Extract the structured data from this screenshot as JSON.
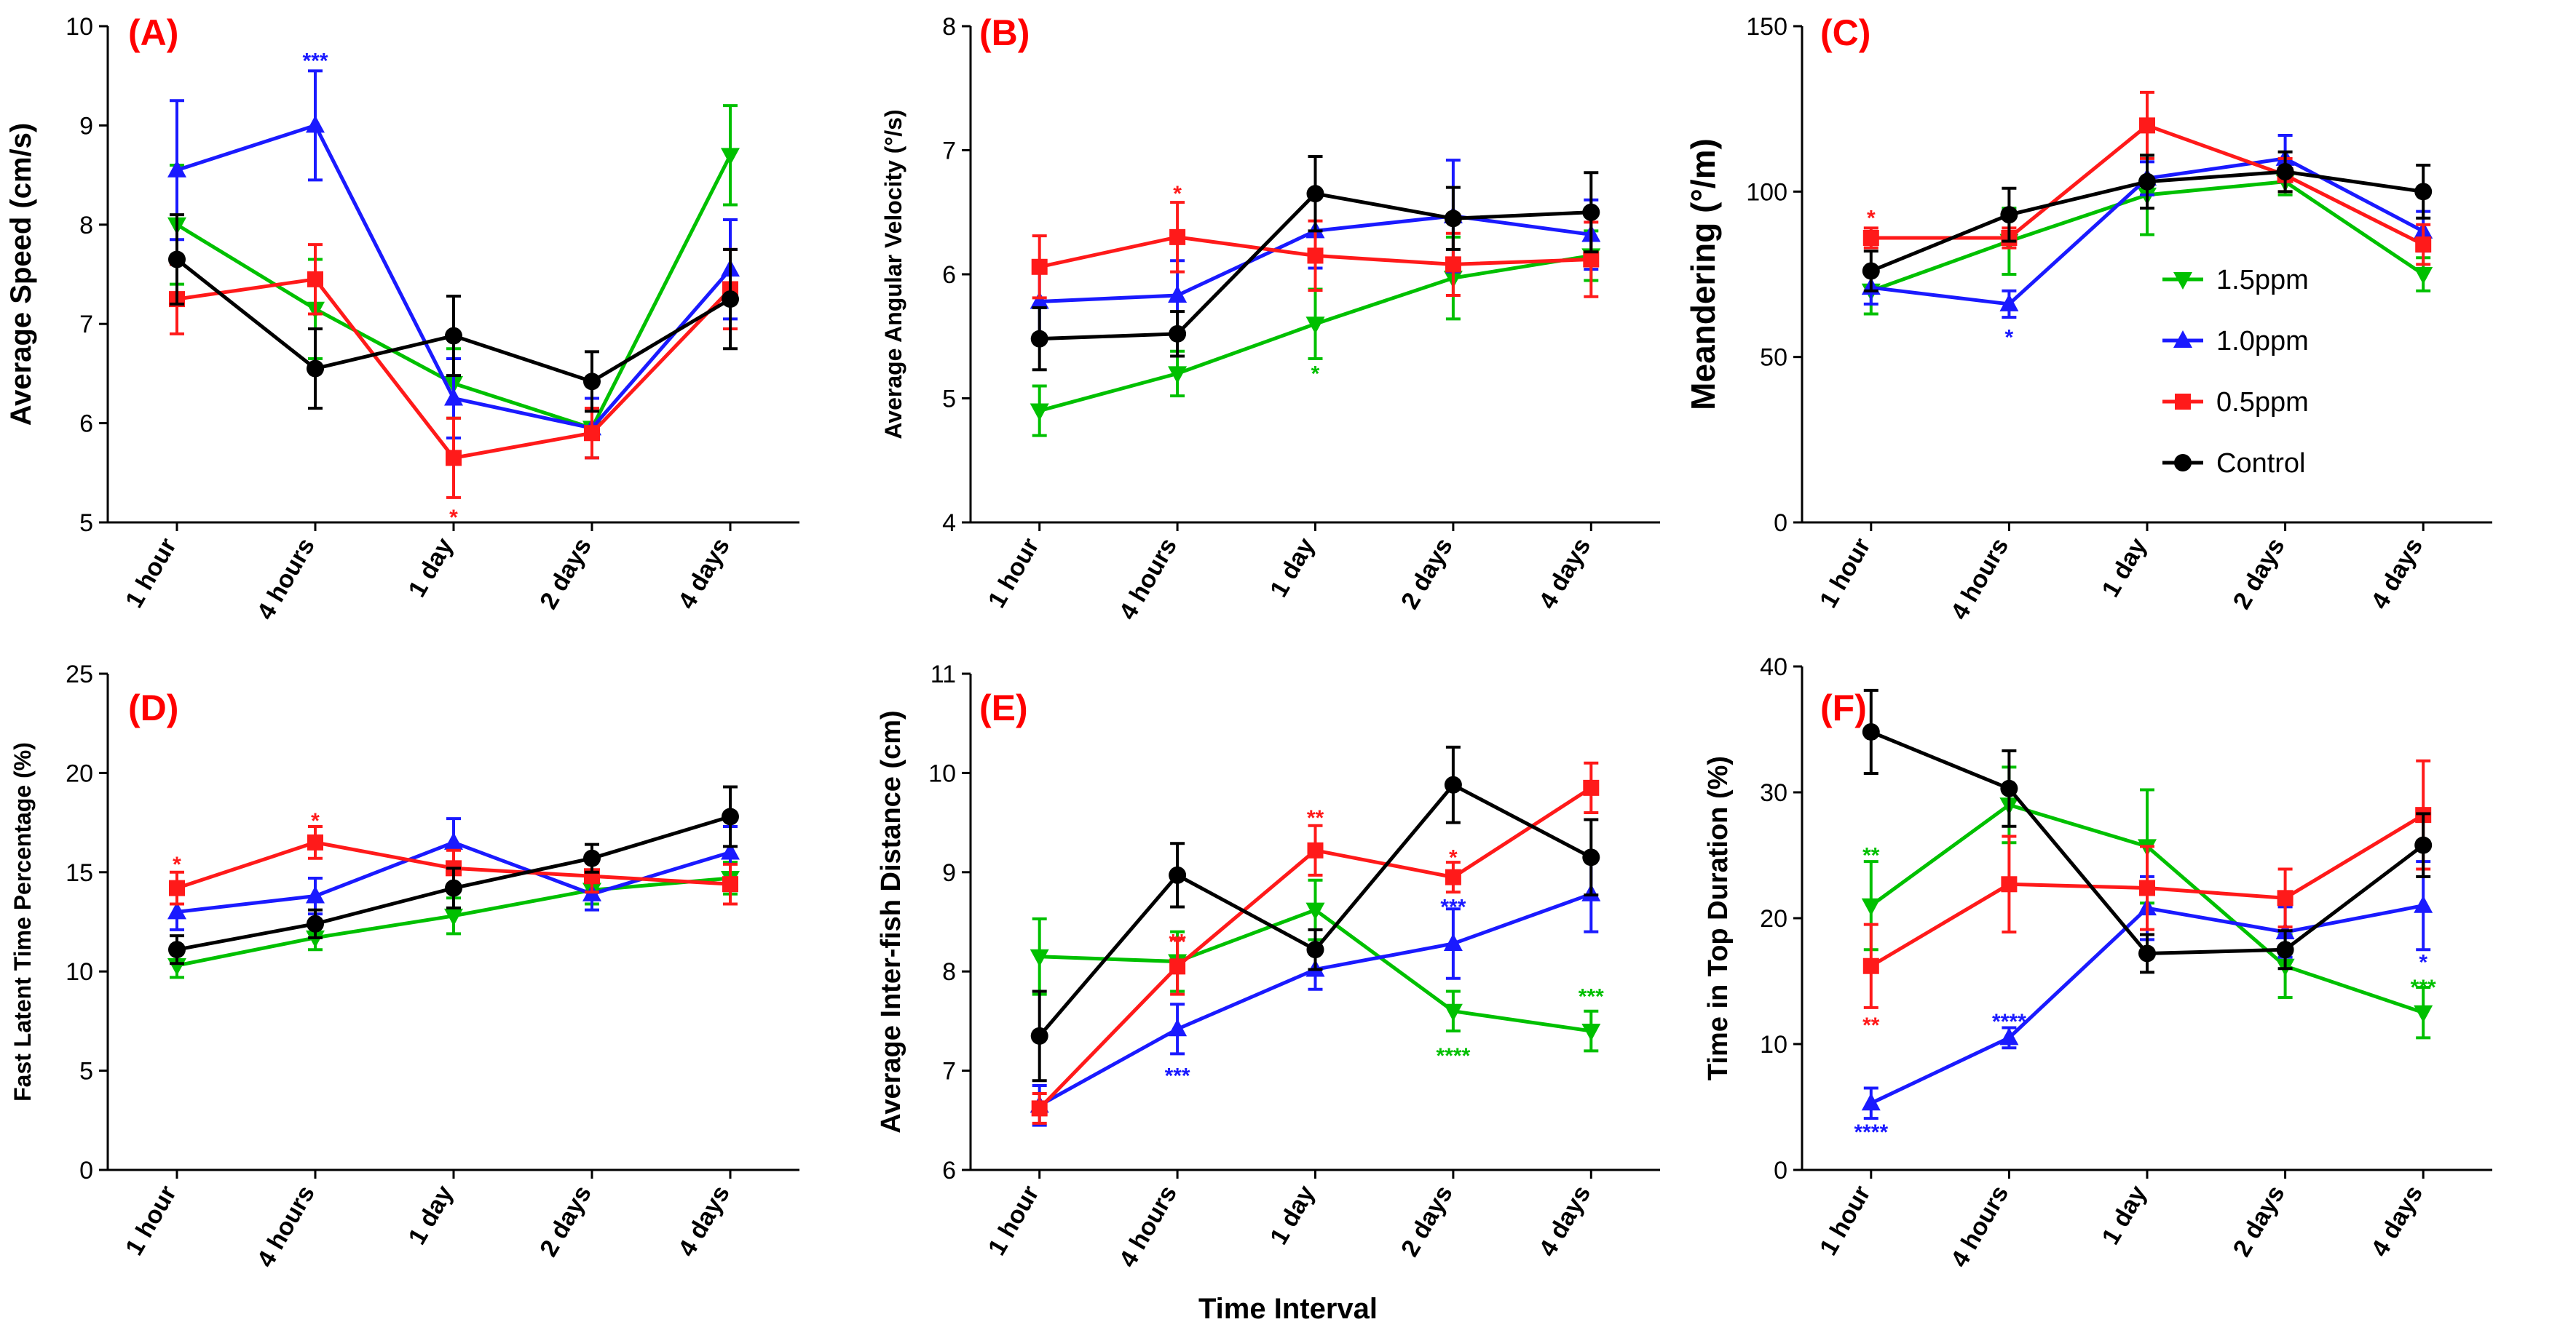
{
  "figure": {
    "xaxis_title": "Time Interval",
    "colors": {
      "1.5ppm": "#00c000",
      "1.0ppm": "#1a1aff",
      "0.5ppm": "#ff1a1a",
      "Control": "#000000"
    },
    "legend": [
      {
        "name": "1.5ppm",
        "marker": "triangle-down"
      },
      {
        "name": "1.0ppm",
        "marker": "triangle-up"
      },
      {
        "name": "0.5ppm",
        "marker": "square"
      },
      {
        "name": "Control",
        "marker": "circle"
      }
    ]
  },
  "chart_data": [
    {
      "panel": "(A)",
      "type": "line",
      "categories": [
        "1 hour",
        "4 hours",
        "1 day",
        "2 days",
        "4 days"
      ],
      "ylabel": "Average Speed (cm/s)",
      "ylim": [
        5,
        10
      ],
      "yticks": [
        5,
        6,
        7,
        8,
        9,
        10
      ],
      "series": [
        {
          "name": "1.5ppm",
          "values": [
            8.0,
            7.15,
            6.4,
            5.95,
            8.7
          ],
          "errors": [
            0.6,
            0.5,
            0.35,
            0.3,
            0.5
          ]
        },
        {
          "name": "1.0ppm",
          "values": [
            8.55,
            9.0,
            6.25,
            5.95,
            7.55
          ],
          "errors": [
            0.7,
            0.55,
            0.4,
            0.3,
            0.5
          ]
        },
        {
          "name": "0.5ppm",
          "values": [
            7.25,
            7.45,
            5.65,
            5.9,
            7.35
          ],
          "errors": [
            0.35,
            0.35,
            0.4,
            0.25,
            0.4
          ]
        },
        {
          "name": "Control",
          "values": [
            7.65,
            6.55,
            6.88,
            6.42,
            7.25
          ],
          "errors": [
            0.45,
            0.4,
            0.4,
            0.3,
            0.5
          ]
        }
      ],
      "annotations": [
        {
          "cat": 1,
          "value": 9.65,
          "text": "***",
          "series": "1.0ppm"
        },
        {
          "cat": 2,
          "value": 5.05,
          "text": "*",
          "series": "0.5ppm"
        }
      ]
    },
    {
      "panel": "(B)",
      "type": "line",
      "categories": [
        "1 hour",
        "4 hours",
        "1 day",
        "2 days",
        "4 days"
      ],
      "ylabel": "Average Angular Velocity (°/s)",
      "ylim": [
        4,
        8
      ],
      "yticks": [
        4,
        5,
        6,
        7,
        8
      ],
      "series": [
        {
          "name": "1.5ppm",
          "values": [
            4.9,
            5.2,
            5.6,
            5.97,
            6.15
          ],
          "errors": [
            0.2,
            0.18,
            0.28,
            0.33,
            0.2
          ]
        },
        {
          "name": "1.0ppm",
          "values": [
            5.78,
            5.83,
            6.35,
            6.47,
            6.32
          ],
          "errors": [
            0.3,
            0.28,
            0.3,
            0.45,
            0.28
          ]
        },
        {
          "name": "0.5ppm",
          "values": [
            6.06,
            6.3,
            6.15,
            6.08,
            6.12
          ],
          "errors": [
            0.25,
            0.28,
            0.28,
            0.25,
            0.3
          ]
        },
        {
          "name": "Control",
          "values": [
            5.48,
            5.52,
            6.65,
            6.45,
            6.5
          ],
          "errors": [
            0.25,
            0.18,
            0.3,
            0.25,
            0.32
          ]
        }
      ],
      "annotations": [
        {
          "cat": 1,
          "value": 6.65,
          "text": "*",
          "series": "0.5ppm"
        },
        {
          "cat": 2,
          "value": 5.2,
          "text": "*",
          "series": "1.5ppm"
        }
      ]
    },
    {
      "panel": "(C)",
      "type": "line",
      "categories": [
        "1 hour",
        "4 hours",
        "1 day",
        "2 days",
        "4 days"
      ],
      "ylabel": "Meandering (°/m)",
      "ylim": [
        0,
        150
      ],
      "yticks": [
        0,
        50,
        100,
        150
      ],
      "series": [
        {
          "name": "1.5ppm",
          "values": [
            70,
            85,
            99,
            103,
            75
          ],
          "errors": [
            7,
            10,
            12,
            4,
            5
          ]
        },
        {
          "name": "1.0ppm",
          "values": [
            71,
            66,
            104,
            110,
            88
          ],
          "errors": [
            5,
            4,
            5,
            7,
            6
          ]
        },
        {
          "name": "0.5ppm",
          "values": [
            86,
            86,
            120,
            105,
            84
          ],
          "errors": [
            3,
            3,
            10,
            5,
            6
          ]
        },
        {
          "name": "Control",
          "values": [
            76,
            93,
            103,
            106,
            100
          ],
          "errors": [
            6,
            8,
            8,
            6,
            8
          ]
        }
      ],
      "annotations": [
        {
          "cat": 0,
          "value": 92,
          "text": "*",
          "series": "0.5ppm"
        },
        {
          "cat": 1,
          "value": 56,
          "text": "*",
          "series": "1.0ppm"
        }
      ]
    },
    {
      "panel": "(D)",
      "type": "line",
      "categories": [
        "1 hour",
        "4 hours",
        "1 day",
        "2 days",
        "4 days"
      ],
      "ylabel": "Fast Latent Time Percentage (%)",
      "ylim": [
        0,
        25
      ],
      "yticks": [
        0,
        5,
        10,
        15,
        20,
        25
      ],
      "series": [
        {
          "name": "1.5ppm",
          "values": [
            10.3,
            11.7,
            12.8,
            14.1,
            14.7
          ],
          "errors": [
            0.6,
            0.6,
            0.9,
            0.7,
            0.8
          ]
        },
        {
          "name": "1.0ppm",
          "values": [
            13.0,
            13.8,
            16.5,
            13.9,
            16.0
          ],
          "errors": [
            0.9,
            0.9,
            1.2,
            0.8,
            1.3
          ]
        },
        {
          "name": "0.5ppm",
          "values": [
            14.2,
            16.5,
            15.2,
            14.8,
            14.4
          ],
          "errors": [
            0.8,
            0.8,
            0.9,
            0.8,
            1.0
          ]
        },
        {
          "name": "Control",
          "values": [
            11.1,
            12.4,
            14.2,
            15.7,
            17.8
          ],
          "errors": [
            0.7,
            0.7,
            1.0,
            0.7,
            1.5
          ]
        }
      ],
      "annotations": [
        {
          "cat": 0,
          "value": 15.4,
          "text": "*",
          "series": "0.5ppm"
        },
        {
          "cat": 1,
          "value": 17.6,
          "text": "*",
          "series": "0.5ppm"
        }
      ]
    },
    {
      "panel": "(E)",
      "type": "line",
      "categories": [
        "1 hour",
        "4 hours",
        "1 day",
        "2 days",
        "4 days"
      ],
      "ylabel": "Average Inter-fish Distance (cm)",
      "ylim": [
        6,
        11
      ],
      "yticks": [
        6,
        7,
        8,
        9,
        10,
        11
      ],
      "series": [
        {
          "name": "1.5ppm",
          "values": [
            8.15,
            8.1,
            8.62,
            7.6,
            7.4
          ],
          "errors": [
            0.38,
            0.3,
            0.3,
            0.2,
            0.2
          ]
        },
        {
          "name": "1.0ppm",
          "values": [
            6.65,
            7.42,
            8.02,
            8.28,
            8.78
          ],
          "errors": [
            0.2,
            0.25,
            0.2,
            0.35,
            0.38
          ]
        },
        {
          "name": "0.5ppm",
          "values": [
            6.62,
            8.05,
            9.22,
            8.95,
            9.85
          ],
          "errors": [
            0.15,
            0.28,
            0.25,
            0.15,
            0.25
          ]
        },
        {
          "name": "Control",
          "values": [
            7.35,
            8.97,
            8.22,
            9.88,
            9.15
          ],
          "errors": [
            0.45,
            0.32,
            0.2,
            0.38,
            0.38
          ]
        }
      ],
      "annotations": [
        {
          "cat": 1,
          "value": 6.95,
          "text": "***",
          "series": "1.0ppm"
        },
        {
          "cat": 1,
          "value": 8.3,
          "text": "**",
          "series": "0.5ppm"
        },
        {
          "cat": 2,
          "value": 9.55,
          "text": "**",
          "series": "0.5ppm"
        },
        {
          "cat": 3,
          "value": 7.15,
          "text": "****",
          "series": "1.5ppm"
        },
        {
          "cat": 3,
          "value": 9.15,
          "text": "*",
          "series": "0.5ppm"
        },
        {
          "cat": 3,
          "value": 8.65,
          "text": "***",
          "series": "1.0ppm"
        },
        {
          "cat": 4,
          "value": 7.75,
          "text": "***",
          "series": "1.5ppm"
        }
      ]
    },
    {
      "panel": "(F)",
      "type": "line",
      "categories": [
        "1 hour",
        "4 hours",
        "1 day",
        "2 days",
        "4 days"
      ],
      "ylabel": "Time in Top Duration (%)",
      "ylim": [
        0,
        40
      ],
      "yticks": [
        0,
        10,
        20,
        30,
        40
      ],
      "series": [
        {
          "name": "1.5ppm",
          "values": [
            21.0,
            29.0,
            25.7,
            16.2,
            12.5
          ],
          "errors": [
            3.5,
            3.0,
            4.5,
            2.5,
            2.0
          ]
        },
        {
          "name": "1.0ppm",
          "values": [
            5.3,
            10.5,
            20.8,
            18.9,
            21.0
          ],
          "errors": [
            1.2,
            0.8,
            2.5,
            2.0,
            3.5
          ]
        },
        {
          "name": "0.5ppm",
          "values": [
            16.2,
            22.7,
            22.4,
            21.6,
            28.2
          ],
          "errors": [
            3.3,
            3.8,
            3.3,
            2.3,
            4.3
          ]
        },
        {
          "name": "Control",
          "values": [
            34.8,
            30.3,
            17.2,
            17.5,
            25.8
          ],
          "errors": [
            3.3,
            3.0,
            1.5,
            1.5,
            2.5
          ]
        }
      ],
      "annotations": [
        {
          "cat": 0,
          "value": 25.0,
          "text": "**",
          "series": "1.5ppm"
        },
        {
          "cat": 0,
          "value": 11.5,
          "text": "**",
          "series": "0.5ppm"
        },
        {
          "cat": 0,
          "value": 3.0,
          "text": "****",
          "series": "1.0ppm"
        },
        {
          "cat": 1,
          "value": 11.8,
          "text": "****",
          "series": "1.0ppm"
        },
        {
          "cat": 4,
          "value": 16.5,
          "text": "*",
          "series": "1.0ppm"
        },
        {
          "cat": 4,
          "value": 14.5,
          "text": "***",
          "series": "1.5ppm"
        }
      ]
    }
  ]
}
